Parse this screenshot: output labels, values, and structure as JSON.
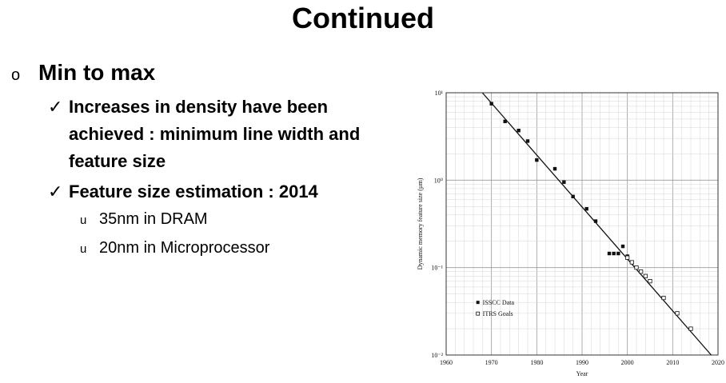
{
  "slide": {
    "title": "Continued",
    "bullets": {
      "main": "Min to max",
      "main_marker": "o",
      "sub1": "Increases in density have been achieved : minimum line width and feature size",
      "sub2": "Feature size estimation : 2014",
      "check": "✓",
      "sub_marker": "u",
      "items": [
        "35nm in DRAM",
        "20nm in Microprocessor"
      ]
    }
  },
  "chart_data": {
    "type": "scatter",
    "xlabel": "Year",
    "ylabel": "Dynamic memory feature size (µm)",
    "xlim": [
      1960,
      2020
    ],
    "ylog": true,
    "ylim": [
      0.01,
      10
    ],
    "xticks": [
      "1960",
      "1970",
      "1980",
      "1990",
      "2000",
      "2010",
      "2020"
    ],
    "yticks": [
      "10¹",
      "10⁰",
      "10⁻¹",
      "10⁻²"
    ],
    "legend": [
      "ISSCC Data",
      "ITRS Goals"
    ],
    "trend_line": {
      "x": [
        1968,
        2018.5
      ],
      "y": [
        10,
        0.01
      ]
    },
    "series": [
      {
        "name": "ISSCC Data",
        "marker": "filled-square",
        "x": [
          1970,
          1973,
          1976,
          1978,
          1980,
          1984,
          1986,
          1988,
          1991,
          1993,
          1996,
          1997,
          1998,
          1999,
          2000
        ],
        "y": [
          7.5,
          4.7,
          3.7,
          2.8,
          1.7,
          1.35,
          0.95,
          0.65,
          0.47,
          0.34,
          0.145,
          0.145,
          0.145,
          0.175,
          0.135
        ]
      },
      {
        "name": "ITRS Goals",
        "marker": "open-square",
        "x": [
          2000,
          2001,
          2002,
          2003,
          2004,
          2005,
          2008,
          2011,
          2014
        ],
        "y": [
          0.13,
          0.115,
          0.1,
          0.09,
          0.08,
          0.07,
          0.045,
          0.03,
          0.02
        ]
      }
    ]
  }
}
